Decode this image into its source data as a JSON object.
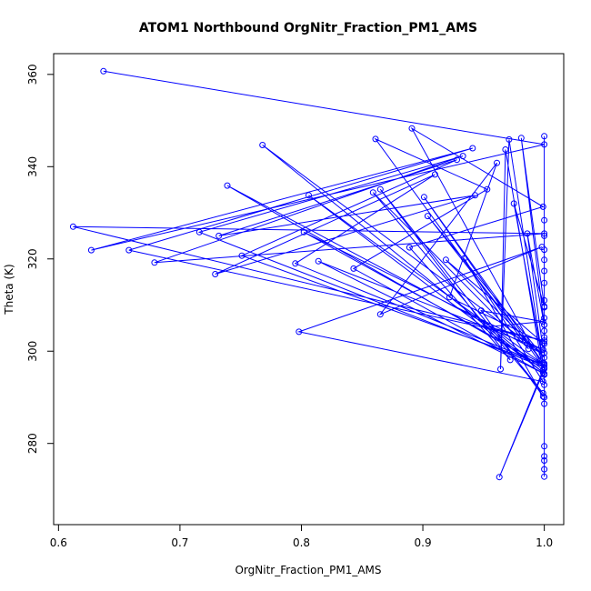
{
  "chart_data": {
    "type": "line",
    "title": "ATOM1 Northbound OrgNitr_Fraction_PM1_AMS",
    "xlabel": "OrgNitr_Fraction_PM1_AMS",
    "ylabel": "Theta (K)",
    "xlim": [
      0.596,
      1.016
    ],
    "ylim": [
      262.4,
      364.5
    ],
    "xticks": [
      "0.6",
      "0.7",
      "0.8",
      "0.9",
      "1.0"
    ],
    "yticks": [
      "280",
      "300",
      "320",
      "340",
      "360"
    ],
    "grid": false,
    "legend": "none",
    "series": [
      {
        "color": "#0000ff",
        "marker": "open-circle",
        "x": [
          0.637,
          1.0,
          0.627,
          0.941,
          0.658,
          1.0,
          0.612,
          1.0,
          0.679,
          0.933,
          0.716,
          1.0,
          0.739,
          0.998,
          0.768,
          0.999,
          0.806,
          1.0,
          0.751,
          0.928,
          0.732,
          0.943,
          0.729,
          0.91,
          0.795,
          1.0,
          0.802,
          0.999,
          0.814,
          1.0,
          0.843,
          0.953,
          0.861,
          0.987,
          0.859,
          0.999,
          0.865,
          0.972,
          0.889,
          0.999,
          0.891,
          1.0,
          0.901,
          0.999,
          0.904,
          1.0,
          0.919,
          0.999,
          0.922,
          0.961,
          0.865,
          0.998,
          0.798,
          0.999,
          0.934,
          0.999,
          0.948,
          0.999,
          0.955,
          0.999,
          0.963,
          0.999,
          0.968,
          0.964,
          0.971,
          0.999,
          0.975,
          1.0,
          0.981,
          1.0,
          0.986,
          0.999
        ],
        "y": [
          360.7,
          344.8,
          321.9,
          344.0,
          321.9,
          302.3,
          327.0,
          325.5,
          319.2,
          342.3,
          325.8,
          296.5,
          335.9,
          299.5,
          344.7,
          295.4,
          333.8,
          297.0,
          320.7,
          341.5,
          325.0,
          333.8,
          316.7,
          338.3,
          319.0,
          297.0,
          325.8,
          300.3,
          319.5,
          295.1,
          317.9,
          335.1,
          346.0,
          300.5,
          334.4,
          290.9,
          335.1,
          298.1,
          322.5,
          331.3,
          348.3,
          296.2,
          333.4,
          297.5,
          329.3,
          298.6,
          319.8,
          301.8,
          311.7,
          340.8,
          308.0,
          322.6,
          304.2,
          293.4,
          320.1,
          290.2,
          308.8,
          306.4,
          305.3,
          295.9,
          272.7,
          295.4,
          343.7,
          296.1,
          345.9,
          297.5,
          332.0,
          309.7,
          346.2,
          305.7,
          325.5,
          300.3
        ]
      },
      {
        "color": "#0000ff",
        "marker": "open-circle",
        "x": [
          1.0,
          1.0,
          1.0,
          1.0,
          1.0,
          1.0,
          1.0,
          1.0,
          1.0,
          1.0,
          1.0,
          1.0,
          1.0,
          1.0,
          1.0,
          1.0,
          1.0,
          1.0,
          1.0,
          1.0,
          1.0,
          1.0,
          1.0,
          1.0,
          1.0
        ],
        "y": [
          346.6,
          328.4,
          325.0,
          322.0,
          319.8,
          317.4,
          314.8,
          311.0,
          309.5,
          307.2,
          305.7,
          304.4,
          303.0,
          301.6,
          299.6,
          297.3,
          294.9,
          292.7,
          290.0,
          288.6,
          279.4,
          277.2,
          276.3,
          274.4,
          272.8
        ]
      }
    ]
  }
}
